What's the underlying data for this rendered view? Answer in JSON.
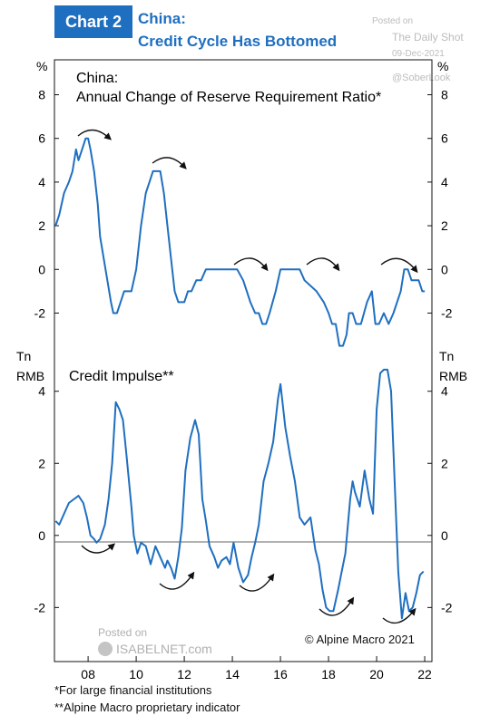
{
  "header": {
    "badge": "Chart 2",
    "title_line1": "China:",
    "title_line2": "Credit Cycle Has Bottomed"
  },
  "watermark_top": {
    "posted_on": "Posted on",
    "site": "The Daily Shot",
    "date": "09-Dec-2021",
    "handle": "@SoberLook"
  },
  "watermark_bottom": {
    "posted_on": "Posted on",
    "site": "ISABELNET.com"
  },
  "copyright": "© Alpine Macro 2021",
  "footnotes": [
    "*For large financial institutions",
    "**Alpine Macro proprietary indicator"
  ],
  "colors": {
    "line": "#1f6fc0",
    "accent": "#1f6fc0",
    "zero_line": "#666666"
  },
  "chart_data": [
    {
      "type": "line",
      "title_line1": "China:",
      "title_line2": "Annual Change of Reserve Requirement Ratio*",
      "unit_left": "%",
      "unit_right": "%",
      "ylim": [
        -3.6,
        9.6
      ],
      "yticks": [
        -2,
        0,
        2,
        4,
        6,
        8
      ],
      "ytick_labels": [
        "-2",
        "0",
        "2",
        "4",
        "6",
        "8"
      ],
      "xlim": [
        2006.6,
        2022.3
      ],
      "series": [
        {
          "x": [
            2006.65,
            2006.8,
            2007.0,
            2007.2,
            2007.35,
            2007.5,
            2007.6,
            2007.75,
            2007.9,
            2008.0,
            2008.1,
            2008.25,
            2008.4,
            2008.5,
            2008.65,
            2008.8,
            2008.95,
            2009.05,
            2009.2,
            2009.35,
            2009.5,
            2009.65,
            2009.8,
            2010.0,
            2010.2,
            2010.4,
            2010.55,
            2010.7,
            2010.85,
            2011.0,
            2011.15,
            2011.3,
            2011.5,
            2011.6,
            2011.75,
            2011.9,
            2012.0,
            2012.15,
            2012.3,
            2012.5,
            2012.7,
            2012.9,
            2013.1,
            2013.5,
            2013.9,
            2014.2,
            2014.45,
            2014.6,
            2014.75,
            2014.95,
            2015.1,
            2015.25,
            2015.4,
            2015.55,
            2015.8,
            2016.0,
            2016.2,
            2016.5,
            2016.8,
            2017.0,
            2017.5,
            2017.8,
            2018.0,
            2018.15,
            2018.3,
            2018.45,
            2018.6,
            2018.75,
            2018.85,
            2019.0,
            2019.15,
            2019.35,
            2019.6,
            2019.8,
            2019.95,
            2020.1,
            2020.3,
            2020.5,
            2020.7,
            2020.85,
            2021.0,
            2021.15,
            2021.3,
            2021.45,
            2021.6,
            2021.75,
            2021.9,
            2022.0
          ],
          "y": [
            2.0,
            2.5,
            3.5,
            4.0,
            4.5,
            5.5,
            5.0,
            5.5,
            6.0,
            6.0,
            5.5,
            4.5,
            3.0,
            1.5,
            0.5,
            -0.5,
            -1.5,
            -2.0,
            -2.0,
            -1.5,
            -1.0,
            -1.0,
            -1.0,
            0.0,
            2.0,
            3.5,
            4.0,
            4.5,
            4.5,
            4.5,
            3.5,
            2.0,
            0.0,
            -1.0,
            -1.5,
            -1.5,
            -1.5,
            -1.0,
            -1.0,
            -0.5,
            -0.5,
            0.0,
            0.0,
            0.0,
            0.0,
            0.0,
            -0.5,
            -1.0,
            -1.5,
            -2.0,
            -2.0,
            -2.5,
            -2.5,
            -2.0,
            -1.0,
            0.0,
            0.0,
            0.0,
            0.0,
            -0.5,
            -1.0,
            -1.5,
            -2.0,
            -2.5,
            -2.5,
            -3.5,
            -3.5,
            -3.0,
            -2.0,
            -2.0,
            -2.5,
            -2.5,
            -1.5,
            -1.0,
            -2.5,
            -2.5,
            -2.0,
            -2.5,
            -2.0,
            -1.5,
            -1.0,
            0.0,
            0.0,
            -0.5,
            -0.5,
            -0.5,
            -1.0,
            -1.0
          ]
        }
      ]
    },
    {
      "type": "line",
      "title": "Credit Impulse**",
      "unit_left_line1": "Tn",
      "unit_left_line2": "RMB",
      "unit_right_line1": "Tn",
      "unit_right_line2": "RMB",
      "ylim": [
        -3.5,
        5.2
      ],
      "yticks": [
        -2,
        0,
        2,
        4
      ],
      "ytick_labels": [
        "-2",
        "0",
        "2",
        "4"
      ],
      "xlim": [
        2006.6,
        2022.3
      ],
      "xticks": [
        2008,
        2010,
        2012,
        2014,
        2016,
        2018,
        2020,
        2022
      ],
      "xtick_labels": [
        "08",
        "10",
        "12",
        "14",
        "16",
        "18",
        "20",
        "22"
      ],
      "series": [
        {
          "x": [
            2006.65,
            2006.8,
            2007.0,
            2007.2,
            2007.4,
            2007.6,
            2007.8,
            2007.95,
            2008.1,
            2008.25,
            2008.35,
            2008.5,
            2008.7,
            2008.85,
            2009.0,
            2009.15,
            2009.3,
            2009.45,
            2009.6,
            2009.8,
            2009.9,
            2010.05,
            2010.2,
            2010.4,
            2010.6,
            2010.8,
            2011.0,
            2011.2,
            2011.3,
            2011.45,
            2011.6,
            2011.75,
            2011.9,
            2012.05,
            2012.25,
            2012.45,
            2012.6,
            2012.75,
            2012.9,
            2013.05,
            2013.25,
            2013.4,
            2013.55,
            2013.75,
            2013.9,
            2014.05,
            2014.25,
            2014.45,
            2014.65,
            2014.8,
            2014.95,
            2015.1,
            2015.3,
            2015.5,
            2015.7,
            2015.9,
            2016.0,
            2016.2,
            2016.4,
            2016.6,
            2016.8,
            2017.0,
            2017.25,
            2017.45,
            2017.6,
            2017.75,
            2017.9,
            2018.05,
            2018.2,
            2018.4,
            2018.55,
            2018.7,
            2018.9,
            2019.0,
            2019.1,
            2019.3,
            2019.5,
            2019.7,
            2019.85,
            2020.0,
            2020.15,
            2020.3,
            2020.45,
            2020.6,
            2020.75,
            2020.9,
            2021.05,
            2021.2,
            2021.35,
            2021.5,
            2021.65,
            2021.8,
            2021.95
          ],
          "y": [
            0.4,
            0.3,
            0.6,
            0.9,
            1.0,
            1.1,
            0.9,
            0.5,
            0.0,
            -0.1,
            -0.2,
            -0.1,
            0.3,
            1.0,
            2.0,
            3.7,
            3.5,
            3.2,
            2.2,
            0.8,
            0.0,
            -0.5,
            -0.2,
            -0.3,
            -0.8,
            -0.3,
            -0.6,
            -0.9,
            -0.7,
            -0.9,
            -1.2,
            -0.6,
            0.2,
            1.8,
            2.7,
            3.2,
            2.8,
            1.0,
            0.4,
            -0.3,
            -0.6,
            -0.9,
            -0.7,
            -0.6,
            -0.8,
            -0.2,
            -0.9,
            -1.3,
            -1.1,
            -0.6,
            -0.2,
            0.3,
            1.5,
            2.0,
            2.6,
            3.8,
            4.2,
            3.0,
            2.2,
            1.5,
            0.5,
            0.3,
            0.5,
            -0.4,
            -0.8,
            -1.5,
            -2.0,
            -2.1,
            -2.1,
            -1.5,
            -1.0,
            -0.5,
            1.0,
            1.5,
            1.2,
            0.8,
            1.8,
            1.0,
            0.6,
            3.5,
            4.5,
            4.6,
            4.6,
            4.0,
            1.5,
            -1.0,
            -2.3,
            -1.6,
            -2.1,
            -2.0,
            -1.6,
            -1.1,
            -1.0
          ]
        }
      ]
    }
  ]
}
